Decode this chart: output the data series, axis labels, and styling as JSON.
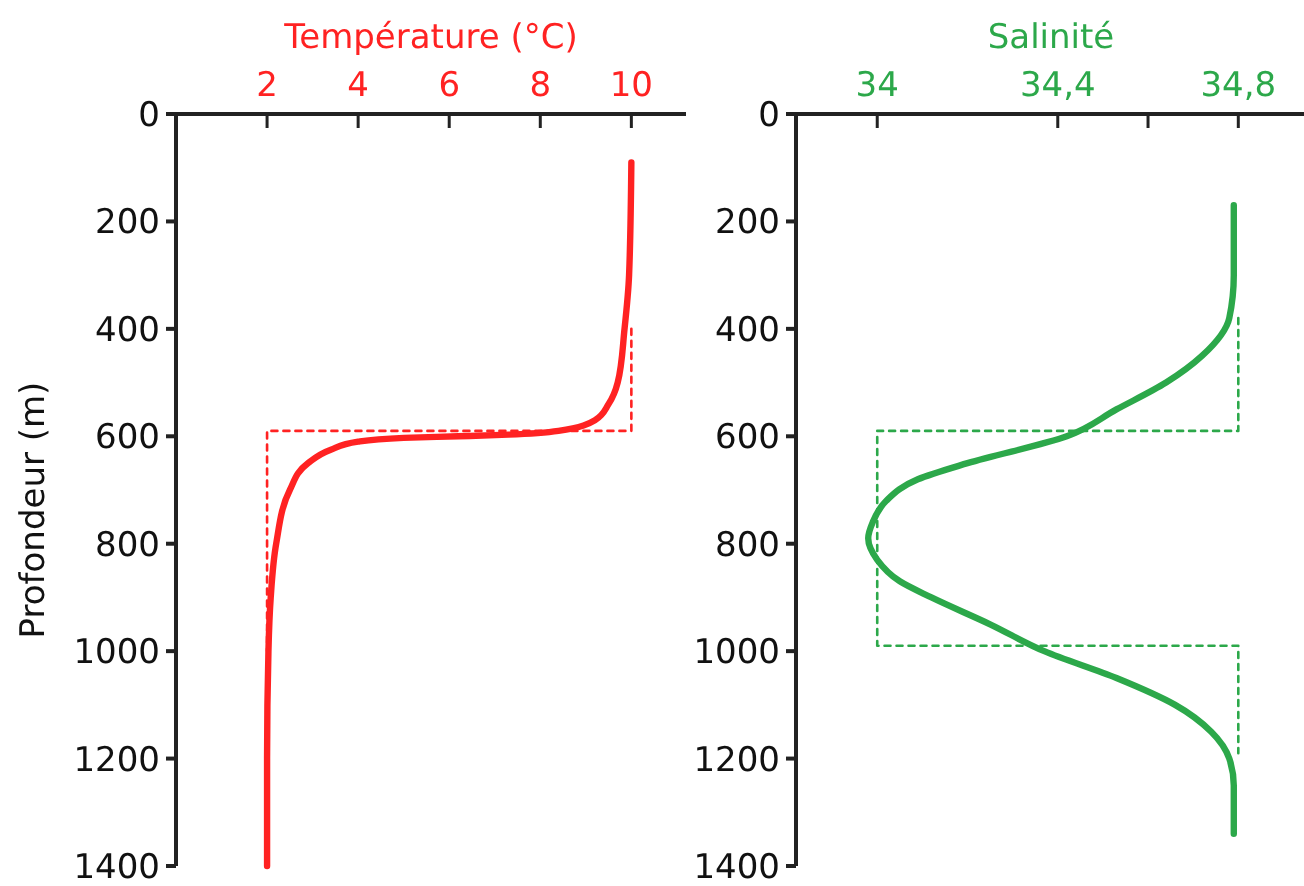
{
  "chart_data": [
    {
      "type": "line",
      "xlabel": "Température (°C)",
      "ylabel": "Profondeur (m)",
      "xlim": [
        0,
        11.2
      ],
      "xticks": [
        2,
        4,
        6,
        8,
        10
      ],
      "ylim": [
        1400,
        0
      ],
      "yticks": [
        0,
        200,
        400,
        600,
        800,
        1000,
        1200,
        1400
      ],
      "series": [
        {
          "color": "#ff2222",
          "line_style": "solid",
          "x": [
            10,
            9.95,
            9.85,
            9.7,
            9.5,
            9.2,
            8.4,
            7.3,
            6.2,
            5.0,
            4.0,
            3.4,
            2.9,
            2.5,
            2.2,
            2.08,
            2.03,
            2.0,
            2.0
          ],
          "values": [
            90,
            300,
            400,
            500,
            540,
            570,
            590,
            597,
            600,
            603,
            610,
            625,
            650,
            700,
            800,
            900,
            1000,
            1200,
            1400
          ]
        },
        {
          "color": "#ff2222",
          "line_style": "dashed",
          "x": [
            10,
            10,
            2,
            2
          ],
          "values": [
            400,
            590,
            590,
            1000
          ]
        }
      ]
    },
    {
      "type": "line",
      "xlabel": "Salinité",
      "xlim": [
        33.82,
        34.95
      ],
      "xticks": [
        {
          "value": 34,
          "label": "34"
        },
        {
          "value": 34.4,
          "label": "34,4"
        },
        {
          "value": 34.6,
          "label": null
        },
        {
          "value": 34.8,
          "label": "34,8"
        }
      ],
      "ylim": [
        1400,
        0
      ],
      "yticks": [
        0,
        200,
        400,
        600,
        800,
        1000,
        1200,
        1400
      ],
      "series": [
        {
          "color": "#2ca84a",
          "line_style": "solid",
          "x": [
            34.79,
            34.79,
            34.78,
            34.72,
            34.64,
            34.53,
            34.42,
            34.2,
            34.09,
            34.02,
            33.99,
            33.98,
            34.0,
            34.05,
            34.12,
            34.25,
            34.37,
            34.53,
            34.66,
            34.74,
            34.78,
            34.79,
            34.79
          ],
          "values": [
            170,
            300,
            380,
            450,
            500,
            550,
            600,
            650,
            680,
            720,
            760,
            790,
            830,
            870,
            900,
            950,
            1000,
            1050,
            1100,
            1150,
            1200,
            1250,
            1340
          ]
        },
        {
          "color": "#2ca84a",
          "line_style": "dashed",
          "x": [
            34.8,
            34.8,
            34,
            34,
            34.8,
            34.8
          ],
          "values": [
            380,
            590,
            590,
            990,
            990,
            1190
          ]
        }
      ]
    }
  ]
}
